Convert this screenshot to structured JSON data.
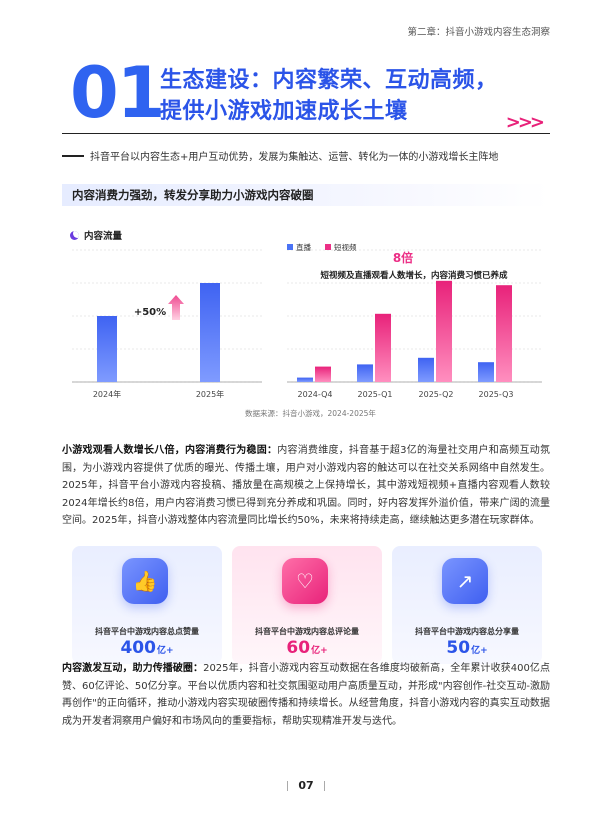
{
  "header": {
    "chapter": "第二章：抖音小游戏内容生态洞察",
    "number": "01",
    "title_line1": "生态建设：内容繁荣、互动高频，",
    "title_line2": "提供小游戏加速成长土壤",
    "arrows": ">>>",
    "subtitle": "抖音平台以内容生态+用户互动优势，发展为集触达、运营、转化为一体的小游戏增长主阵地"
  },
  "section": {
    "heading": "内容消费力强劲，转发分享助力小游戏内容破圈"
  },
  "chart_data": [
    {
      "type": "bar",
      "legend_label": "内容流量",
      "categories": [
        "2024年",
        "2025年"
      ],
      "values": [
        100,
        150
      ],
      "ylim": [
        0,
        200
      ],
      "annotation": "+50%",
      "colors": [
        "#4a73f5"
      ]
    },
    {
      "type": "bar",
      "categories": [
        "2024-Q4",
        "2025-Q1",
        "2025-Q2",
        "2025-Q3"
      ],
      "series": [
        {
          "name": "直播",
          "values": [
            2,
            8,
            11,
            9
          ],
          "color": "#4a73f5"
        },
        {
          "name": "短视频",
          "values": [
            7,
            31,
            46,
            44
          ],
          "color": "#ec2f86"
        }
      ],
      "ylim": [
        0,
        60
      ],
      "annotation_big": "8倍",
      "annotation_text": "短视频及直播观看人数增长，内容消费习惯已养成"
    }
  ],
  "source": "数据来源：抖音小游戏，2024-2025年",
  "para1": {
    "lead": "小游戏观看人数增长八倍，内容消费行为稳固：",
    "body": "内容消费维度，抖音基于超3亿的海量社交用户和高频互动氛围，为小游戏内容提供了优质的曝光、传播土壤，用户对小游戏内容的触达可以在社交关系网络中自然发生。2025年，抖音平台小游戏内容投稿、播放量在高规模之上保持增长，其中游戏短视频+直播内容观看人数较2024年增长约8倍，用户内容消费习惯已得到充分养成和巩固。同时，好内容发挥外溢价值，带来广阔的流量空间。2025年，抖音小游戏整体内容流量同比增长约50%，未来将持续走高，继续触达更多潜在玩家群体。"
  },
  "cards": [
    {
      "icon": "thumbs-up-icon",
      "glyph": "👍",
      "label": "抖音平台中游戏内容总点赞量",
      "value": "400",
      "unit": "亿+"
    },
    {
      "icon": "comment-icon",
      "glyph": "♡",
      "label": "抖音平台中游戏内容总评论量",
      "value": "60",
      "unit": "亿+"
    },
    {
      "icon": "share-icon",
      "glyph": "↗",
      "label": "抖音平台中游戏内容总分享量",
      "value": "50",
      "unit": "亿+"
    }
  ],
  "para2": {
    "lead": "内容激发互动，助力传播破圈：",
    "body": "2025年，抖音小游戏内容互动数据在各维度均破新高，全年累计收获400亿点赞、60亿评论、50亿分享。平台以优质内容和社交氛围驱动用户高质量互动，并形成\"内容创作-社交互动-激励再创作\"的正向循环，推动小游戏内容实现破圈传播和持续增长。从经营角度，抖音小游戏内容的真实互动数据成为开发者洞察用户偏好和市场风向的重要指标，帮助实现精准开发与迭代。"
  },
  "page_number": "07"
}
